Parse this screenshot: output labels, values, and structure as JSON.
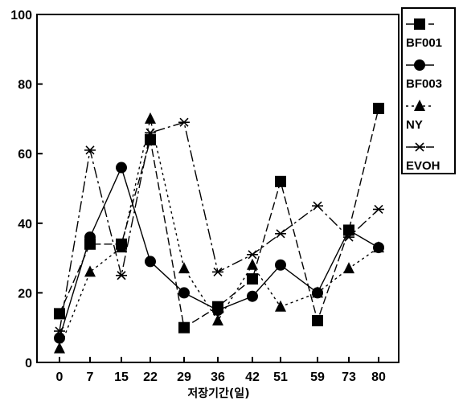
{
  "chart_data": {
    "type": "line",
    "title": "",
    "xlabel": "저장기간(일)",
    "ylabel": "",
    "categories": [
      "0",
      "7",
      "15",
      "22",
      "29",
      "36",
      "42",
      "51",
      "59",
      "73",
      "80"
    ],
    "ylim": [
      0,
      100
    ],
    "yticks": [
      "0",
      "20",
      "40",
      "60",
      "80",
      "100"
    ],
    "legend_position": "right",
    "series": [
      {
        "name": "BF001",
        "marker": "square",
        "dash": "10 4",
        "values": [
          14,
          34,
          34,
          64,
          10,
          16,
          24,
          52,
          12,
          38,
          73
        ]
      },
      {
        "name": "BF003",
        "marker": "circle",
        "dash": "none",
        "values": [
          7,
          36,
          56,
          29,
          20,
          15,
          19,
          28,
          20,
          38,
          33
        ]
      },
      {
        "name": "NY",
        "marker": "triangle",
        "dash": "3 4",
        "values": [
          4,
          26,
          33,
          70,
          27,
          12,
          28,
          16,
          20,
          27,
          33
        ]
      },
      {
        "name": "EVOH",
        "marker": "star",
        "dash": "14 4 3 4",
        "values": [
          9,
          61,
          25,
          66,
          69,
          26,
          31,
          37,
          45,
          36,
          44
        ]
      }
    ]
  }
}
